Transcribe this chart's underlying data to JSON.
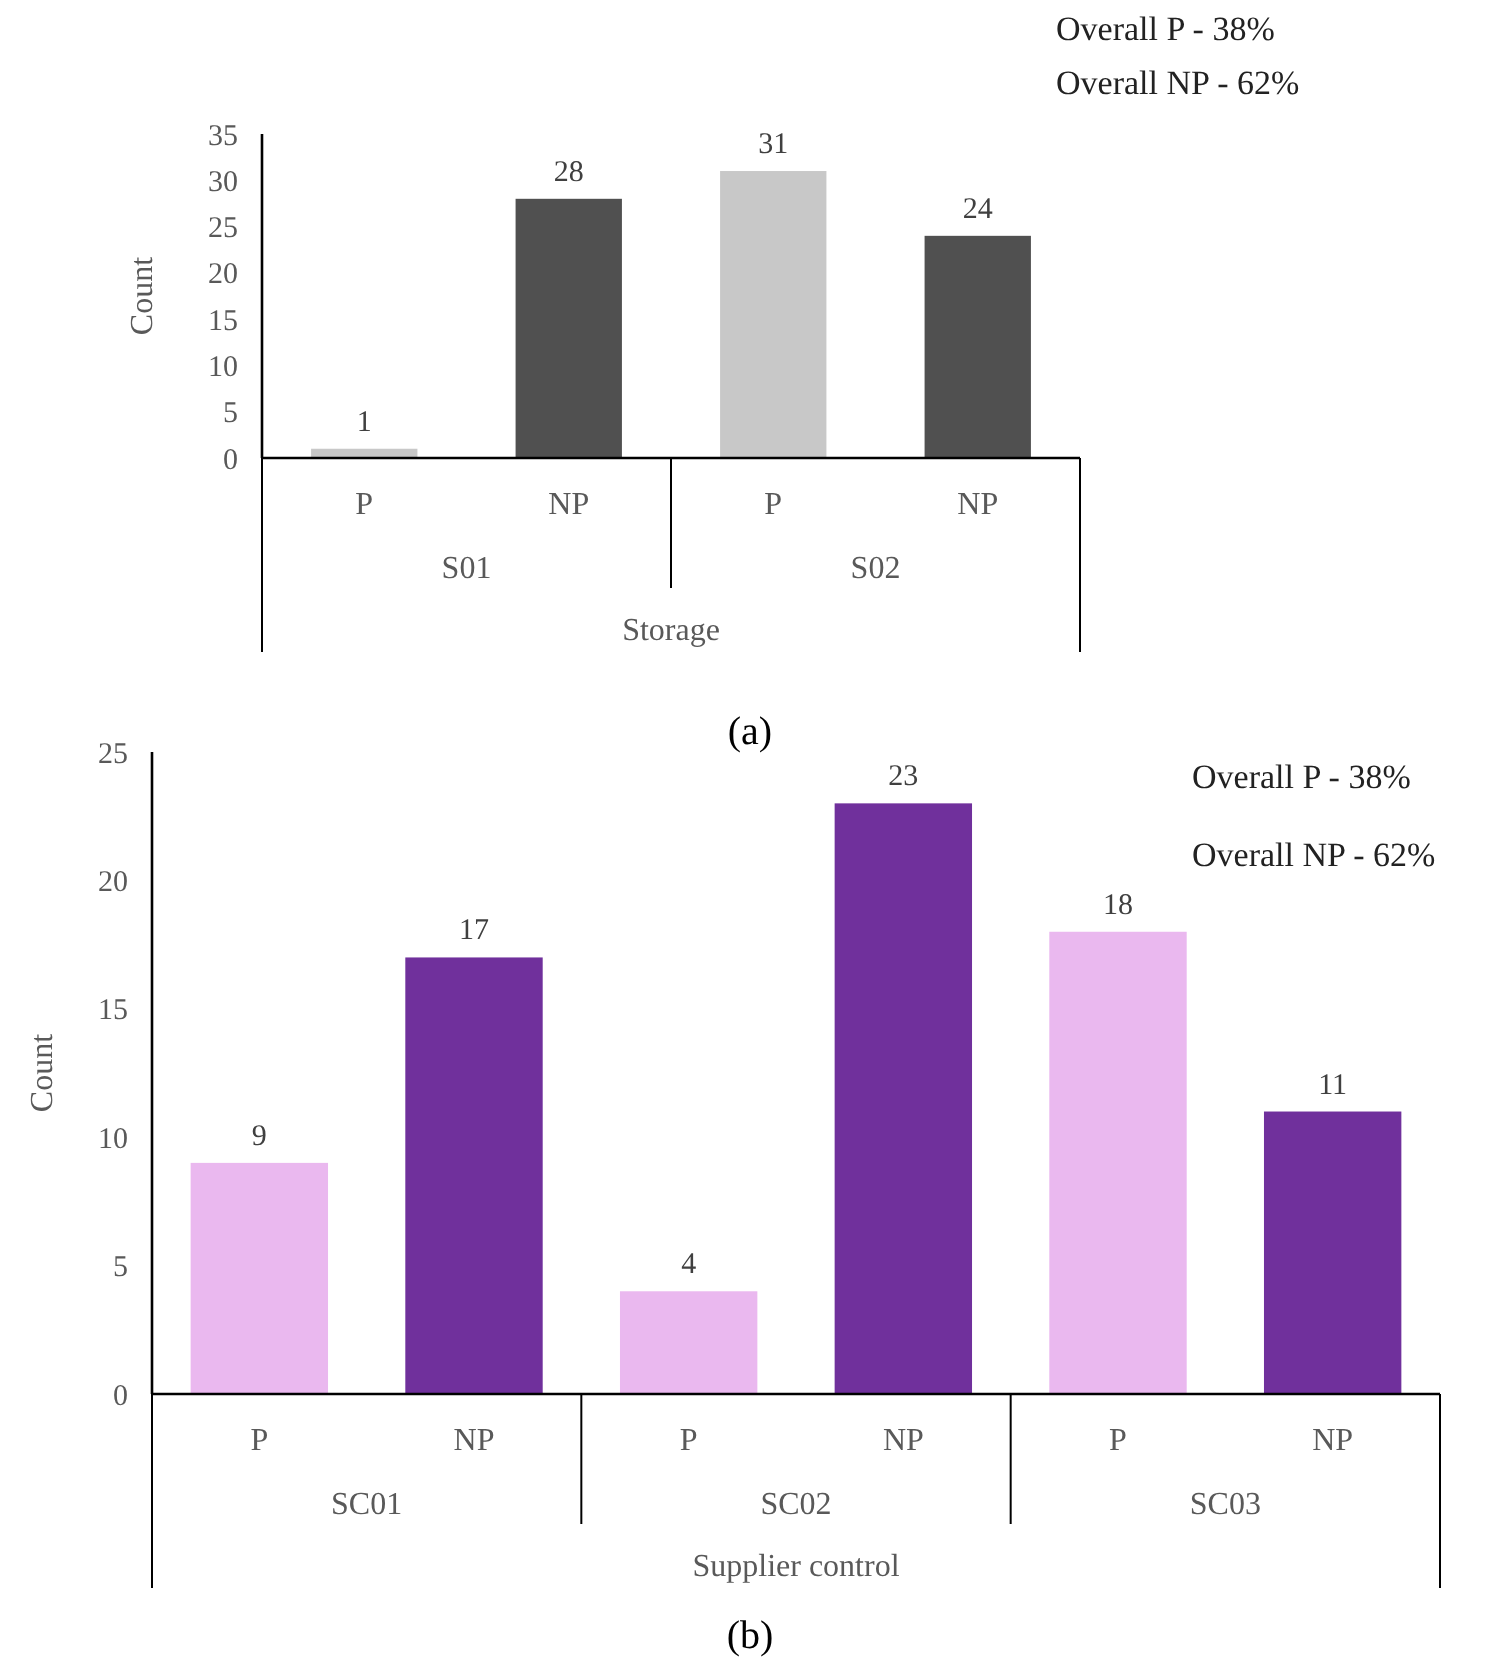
{
  "chart_data": [
    {
      "type": "bar",
      "title": "(a)",
      "ylabel": "Count",
      "xlabel": "Storage",
      "categories": [
        "P",
        "NP",
        "P",
        "NP"
      ],
      "values": [
        1,
        28,
        31,
        24
      ],
      "colors": [
        "#c8c8c8",
        "#505050",
        "#c8c8c8",
        "#505050"
      ],
      "data_labels": true,
      "ylim": [
        0,
        35
      ],
      "yticks": [
        0,
        5,
        10,
        15,
        20,
        25,
        30,
        35
      ],
      "grid": false,
      "annotations": [
        "S01",
        "S02",
        "Overall P - 38%",
        "Overall NP - 62%"
      ]
    },
    {
      "type": "bar",
      "title": "(b)",
      "ylabel": "Count",
      "xlabel": "Supplier control",
      "categories": [
        "P",
        "NP",
        "P",
        "NP",
        "P",
        "NP"
      ],
      "values": [
        9,
        17,
        4,
        23,
        18,
        11
      ],
      "colors": [
        "#eab8ef",
        "#70309c",
        "#eab8ef",
        "#70309c",
        "#eab8ef",
        "#70309c"
      ],
      "data_labels": true,
      "ylim": [
        0,
        25
      ],
      "yticks": [
        0,
        5,
        10,
        15,
        20,
        25
      ],
      "grid": false,
      "annotations": [
        "SC01",
        "SC02",
        "SC03",
        "Overall P - 38%",
        "Overall NP - 62%"
      ]
    }
  ]
}
